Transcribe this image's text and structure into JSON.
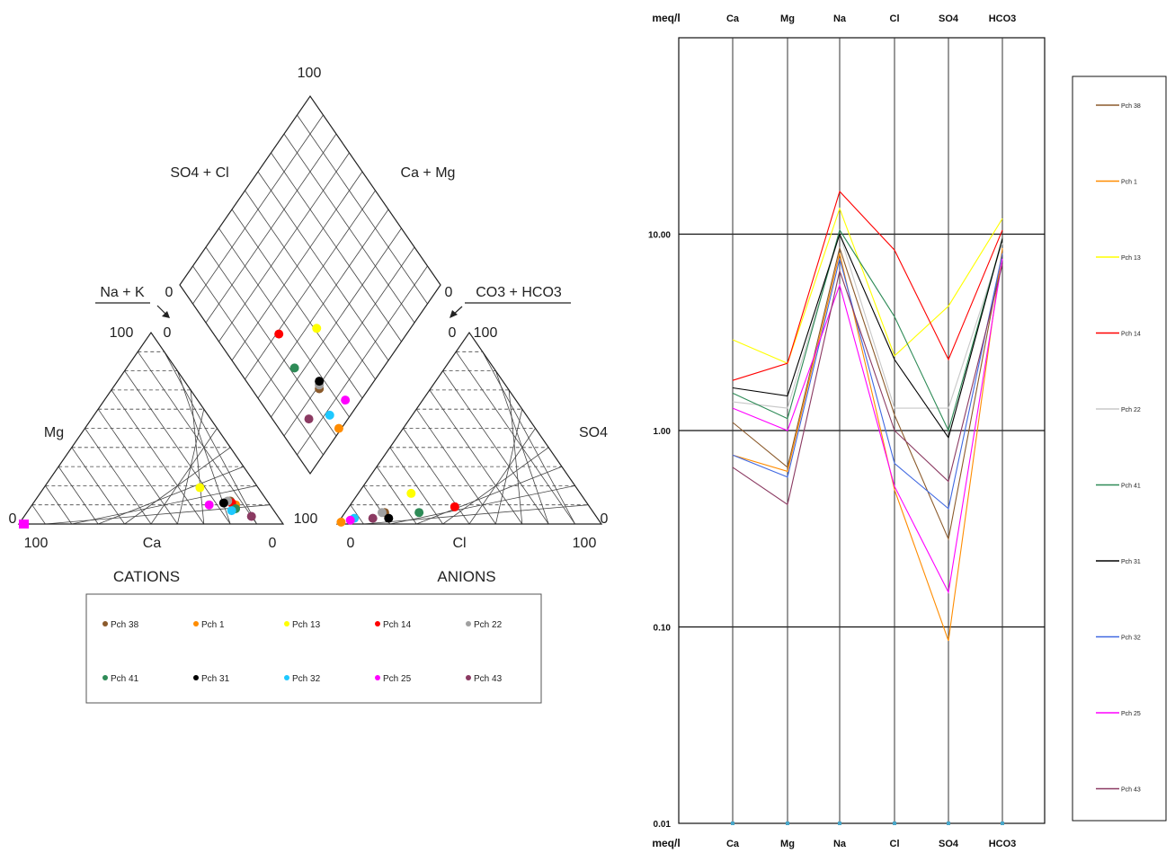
{
  "chart_data": [
    {
      "type": "scatter",
      "title": "",
      "piper": {
        "cation_labels": {
          "mg": "Mg",
          "ca": "Ca",
          "na_k": "Na + K"
        },
        "anion_labels": {
          "so4": "SO4",
          "cl": "Cl",
          "co3_hco3": "CO3 + HCO3"
        },
        "diamond_labels": {
          "so4_cl": "SO4 + Cl",
          "ca_mg": "Ca + Mg"
        },
        "group_labels": {
          "cations": "CATIONS",
          "anions": "ANIONS"
        },
        "tick_labels": {
          "t100": "100",
          "t0": "0"
        },
        "samples": [
          {
            "name": "Pch 38",
            "color": "#8b5a2b",
            "cat": [
              12,
              14,
              74
            ],
            "an": [
              15,
              6,
              79
            ],
            "dia": [
              19,
              26
            ]
          },
          {
            "name": "Pch 1",
            "color": "#ff8c00",
            "cat": [
              10,
              13,
              77
            ],
            "an": [
              1,
              1,
              98
            ],
            "dia": [
              1,
              23
            ]
          },
          {
            "name": "Pch 13",
            "color": "#ffff00",
            "cat": [
              19,
              22,
              59
            ],
            "an": [
              20,
              16,
              64
            ],
            "dia": [
              36,
              41
            ]
          },
          {
            "name": "Pch 14",
            "color": "#ff0000",
            "cat": [
              11,
              14,
              75
            ],
            "an": [
              40,
              9,
              51
            ],
            "dia": [
              49,
              25
            ]
          },
          {
            "name": "Pch 22",
            "color": "#a0a0a0",
            "cat": [
              12,
              15,
              73
            ],
            "an": [
              14,
              6,
              80
            ],
            "dia": [
              20,
              27
            ]
          },
          {
            "name": "Pch 41",
            "color": "#2e8b57",
            "cat": [
              8,
              14,
              78
            ],
            "an": [
              28,
              6,
              66
            ],
            "dia": [
              34,
              22
            ]
          },
          {
            "name": "Pch 31",
            "color": "#000000",
            "cat": [
              11,
              17,
              72
            ],
            "an": [
              18,
              3,
              79
            ],
            "dia": [
              21,
              28
            ]
          },
          {
            "name": "Pch 32",
            "color": "#1ec8ff",
            "cat": [
              7,
              16,
              77
            ],
            "an": [
              5,
              3,
              92
            ],
            "dia": [
              8,
              23
            ]
          },
          {
            "name": "Pch 25",
            "color": "#ff00ff",
            "cat": [
              10,
              23,
              67
            ],
            "an": [
              4,
              2,
              94
            ],
            "dia": [
              6,
              33
            ]
          },
          {
            "name": "Pch 43",
            "color": "#8b3a62",
            "cat": [
              4,
              10,
              86
            ],
            "an": [
              12,
              3,
              85
            ],
            "dia": [
              15,
              14
            ]
          }
        ]
      },
      "legend": {
        "placement": "bottom"
      }
    },
    {
      "type": "line",
      "title": "",
      "ylabel": "meq/l",
      "yscale": "log",
      "ylim": [
        0.01,
        100
      ],
      "yticks": [
        "0.01",
        "0.10",
        "1.00",
        "10.00"
      ],
      "categories": [
        "Ca",
        "Mg",
        "Na",
        "Cl",
        "SO4",
        "HCO3"
      ],
      "series": [
        {
          "name": "Pch 38",
          "color": "#8b5a2b",
          "values": [
            1.1,
            0.65,
            8.5,
            1.2,
            0.28,
            8.0
          ]
        },
        {
          "name": "Pch 1",
          "color": "#ff8c00",
          "values": [
            0.75,
            0.62,
            8.0,
            0.5,
            0.085,
            8.5
          ]
        },
        {
          "name": "Pch 13",
          "color": "#ffff00",
          "values": [
            2.9,
            2.2,
            13.5,
            2.4,
            4.3,
            12.0
          ]
        },
        {
          "name": "Pch 14",
          "color": "#ff0000",
          "values": [
            1.8,
            2.2,
            16.5,
            8.3,
            2.3,
            10.5
          ]
        },
        {
          "name": "Pch 22",
          "color": "#c8c8c8",
          "values": [
            1.4,
            1.3,
            10.0,
            1.3,
            1.3,
            9.0
          ]
        },
        {
          "name": "Pch 41",
          "color": "#2e8b57",
          "values": [
            1.55,
            1.15,
            10.5,
            3.8,
            1.0,
            9.5
          ]
        },
        {
          "name": "Pch 31",
          "color": "#000000",
          "values": [
            1.65,
            1.5,
            10.0,
            2.3,
            0.92,
            9.5
          ]
        },
        {
          "name": "Pch 32",
          "color": "#4169e1",
          "values": [
            0.75,
            0.58,
            7.5,
            0.68,
            0.4,
            8.0
          ]
        },
        {
          "name": "Pch 25",
          "color": "#ff00ff",
          "values": [
            1.3,
            1.0,
            5.5,
            0.52,
            0.15,
            7.5
          ]
        },
        {
          "name": "Pch 43",
          "color": "#8b3a62",
          "values": [
            0.65,
            0.42,
            6.5,
            1.0,
            0.55,
            7.0
          ]
        }
      ],
      "legend": {
        "placement": "right"
      }
    }
  ]
}
